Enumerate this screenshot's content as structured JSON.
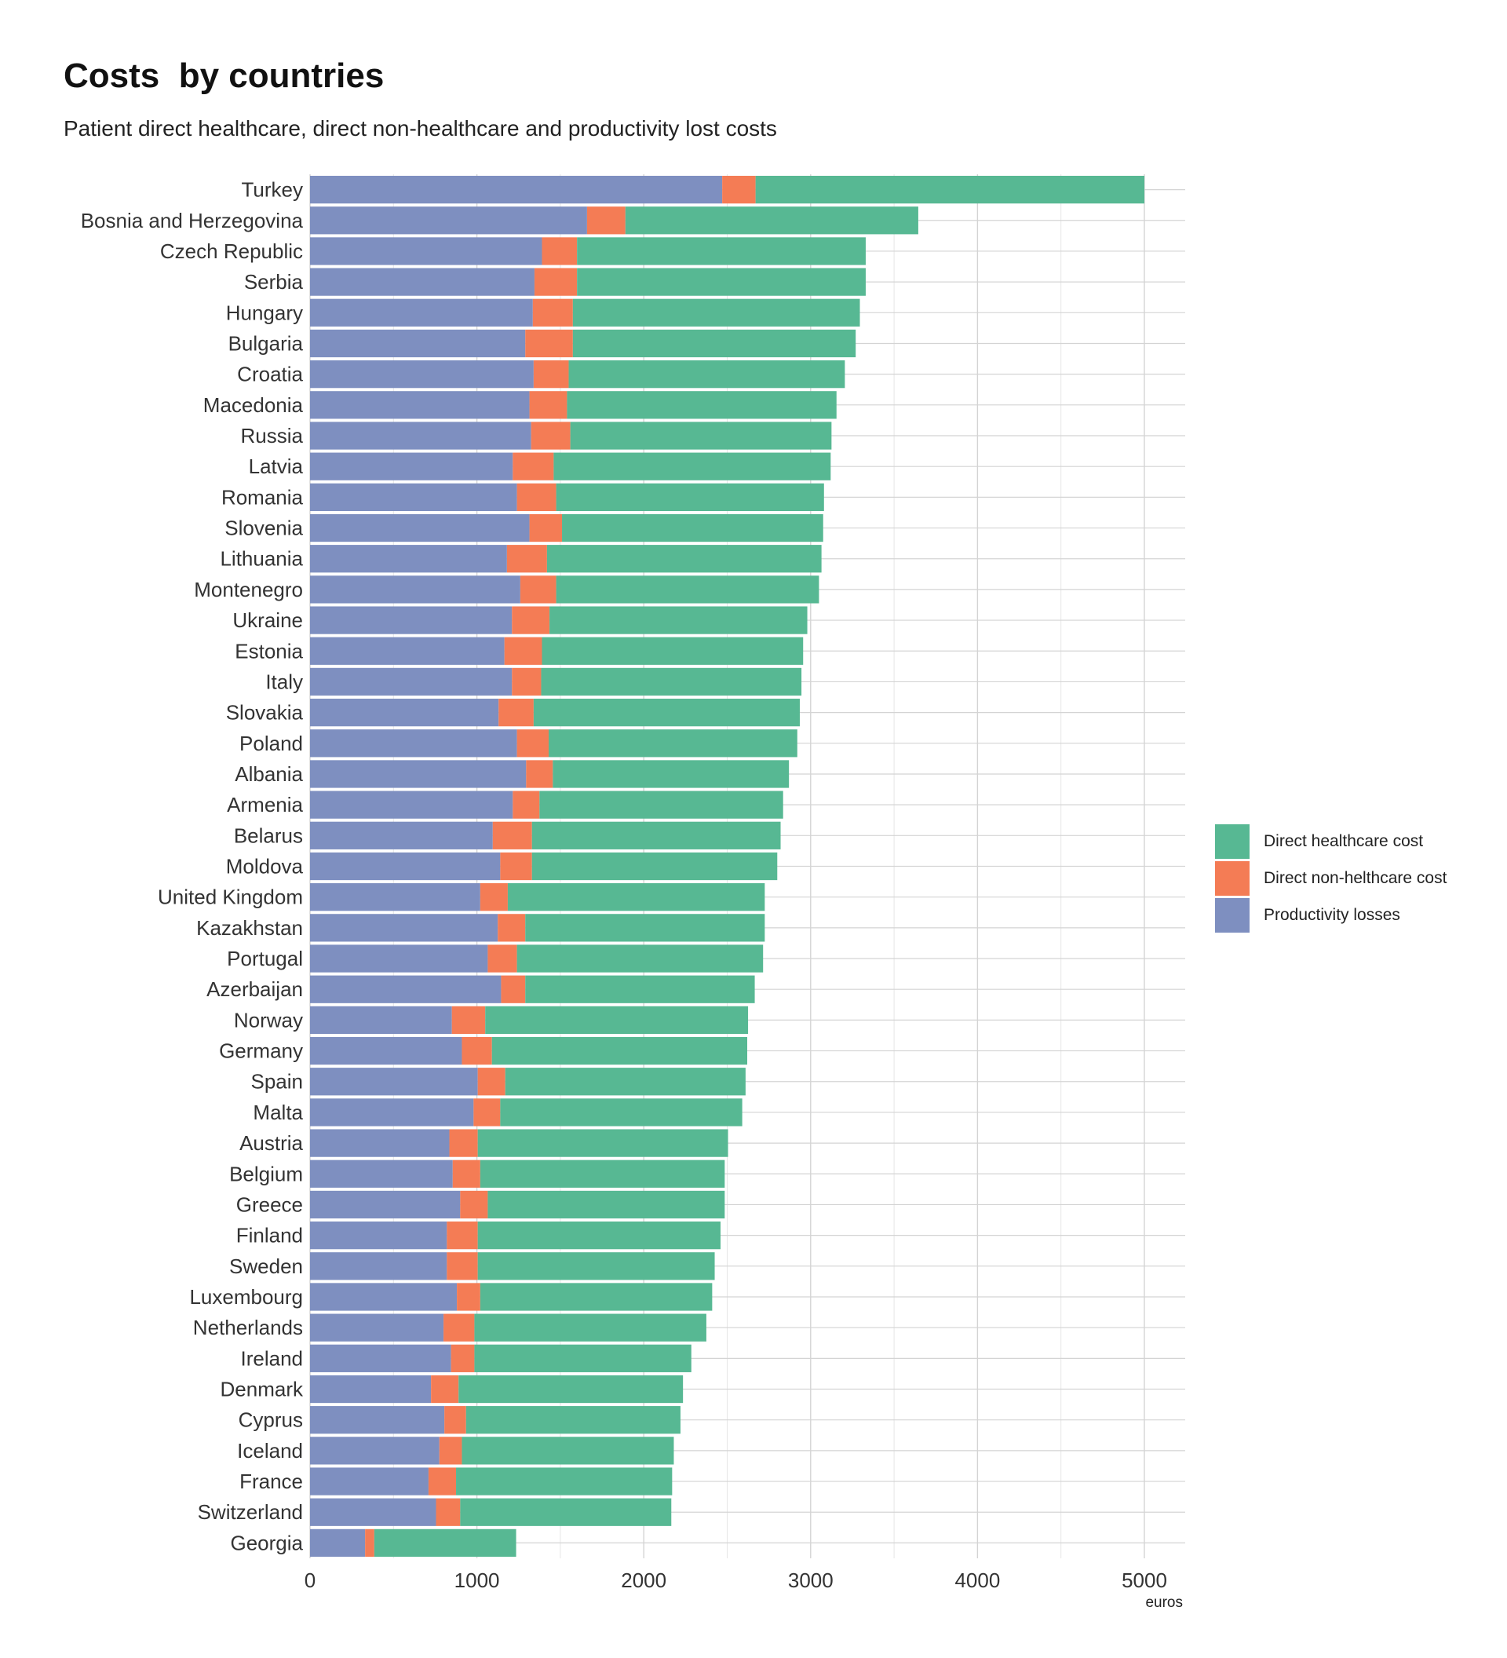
{
  "chart_data": {
    "type": "bar",
    "orientation": "horizontal",
    "stacked": true,
    "title": "Costs  by countries",
    "subtitle": "Patient direct healthcare, direct non-healthcare and productivity lost costs",
    "xlabel": "euros",
    "ylabel": "",
    "xlim": [
      0,
      5250
    ],
    "xticks": [
      "0",
      "1000",
      "2000",
      "3000",
      "4000",
      "5000"
    ],
    "grid": true,
    "legend_position": "right",
    "colors": {
      "Productivity losses": "#7e8fc0",
      "Direct non-helthcare cost": "#f47c55",
      "Direct healthcare cost": "#57b893"
    },
    "legend": [
      "Direct healthcare cost",
      "Direct non-helthcare cost",
      "Productivity losses"
    ],
    "categories": [
      "Turkey",
      "Bosnia and Herzegovina",
      "Czech Republic",
      "Serbia",
      "Hungary",
      "Bulgaria",
      "Croatia",
      "Macedonia",
      "Russia",
      "Latvia",
      "Romania",
      "Slovenia",
      "Lithuania",
      "Montenegro",
      "Ukraine",
      "Estonia",
      "Italy",
      "Slovakia",
      "Poland",
      "Albania",
      "Armenia",
      "Belarus",
      "Moldova",
      "United Kingdom",
      "Kazakhstan",
      "Portugal",
      "Azerbaijan",
      "Norway",
      "Germany",
      "Spain",
      "Malta",
      "Austria",
      "Belgium",
      "Greece",
      "Finland",
      "Sweden",
      "Luxembourg",
      "Netherlands",
      "Ireland",
      "Denmark",
      "Cyprus",
      "Iceland",
      "France",
      "Switzerland",
      "Georgia"
    ],
    "series": [
      {
        "name": "Productivity losses",
        "values": [
          2470,
          1660,
          1390,
          1345,
          1335,
          1290,
          1340,
          1315,
          1325,
          1215,
          1240,
          1315,
          1180,
          1260,
          1210,
          1165,
          1210,
          1130,
          1240,
          1295,
          1215,
          1095,
          1140,
          1020,
          1125,
          1065,
          1145,
          850,
          910,
          1005,
          980,
          835,
          855,
          900,
          820,
          820,
          880,
          800,
          845,
          725,
          805,
          775,
          710,
          755,
          330
        ]
      },
      {
        "name": "Direct non-helthcare cost",
        "values": [
          200,
          230,
          210,
          255,
          240,
          285,
          210,
          225,
          235,
          245,
          235,
          195,
          240,
          215,
          225,
          225,
          175,
          210,
          190,
          160,
          160,
          235,
          190,
          165,
          165,
          175,
          145,
          200,
          180,
          165,
          160,
          170,
          165,
          165,
          185,
          185,
          140,
          185,
          140,
          165,
          130,
          135,
          165,
          145,
          55
        ]
      },
      {
        "name": "Direct healthcare cost",
        "values": [
          2330,
          1755,
          1730,
          1730,
          1720,
          1695,
          1655,
          1615,
          1565,
          1660,
          1605,
          1565,
          1645,
          1575,
          1545,
          1565,
          1560,
          1595,
          1490,
          1415,
          1460,
          1490,
          1470,
          1540,
          1435,
          1475,
          1375,
          1575,
          1530,
          1440,
          1450,
          1500,
          1465,
          1420,
          1455,
          1420,
          1390,
          1390,
          1300,
          1345,
          1285,
          1270,
          1295,
          1265,
          850
        ]
      }
    ]
  }
}
